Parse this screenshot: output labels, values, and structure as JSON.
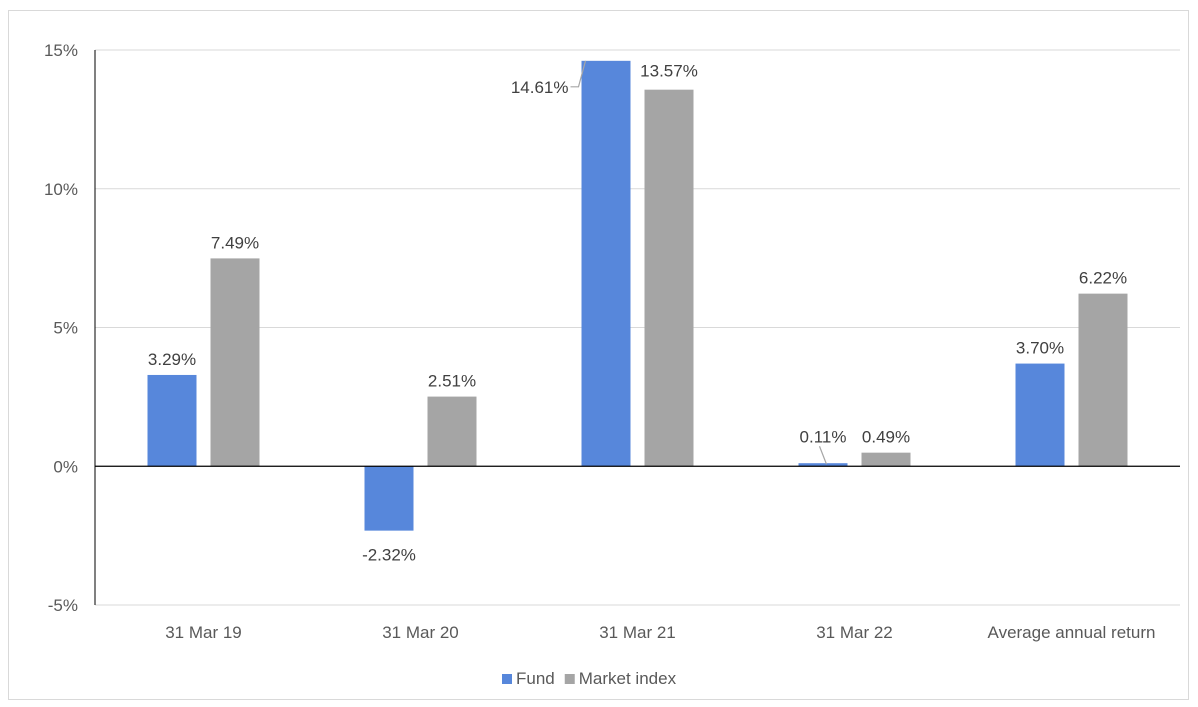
{
  "chart_data": {
    "type": "bar",
    "title": "",
    "xlabel": "",
    "ylabel": "",
    "categories": [
      "31 Mar 19",
      "31 Mar 20",
      "31 Mar 21",
      "31 Mar 22",
      "Average annual return"
    ],
    "series": [
      {
        "name": "Fund",
        "color": "#5787DB",
        "values": [
          3.29,
          -2.32,
          14.61,
          0.11,
          3.7
        ],
        "labels": [
          "3.29%",
          "-2.32%",
          "14.61%",
          "0.11%",
          "3.70%"
        ]
      },
      {
        "name": "Market index",
        "color": "#A5A5A5",
        "values": [
          7.49,
          2.51,
          13.57,
          0.49,
          6.22
        ],
        "labels": [
          "7.49%",
          "2.51%",
          "13.57%",
          "0.49%",
          "6.22%"
        ]
      }
    ],
    "ylim": [
      -5,
      15
    ],
    "yticks": [
      -5,
      0,
      5,
      10,
      15
    ],
    "ytick_labels": [
      "-5%",
      "0%",
      "5%",
      "10%",
      "15%"
    ],
    "grid": true,
    "legend_position": "bottom"
  }
}
